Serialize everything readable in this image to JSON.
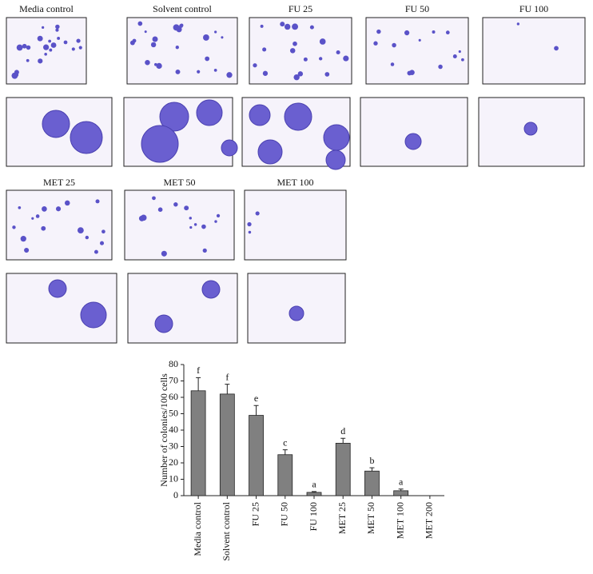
{
  "panel_labels": [
    "Media control",
    "Solvent control",
    "FU 25",
    "FU 50",
    "FU 100",
    "MET 25",
    "MET 50",
    "MET 100"
  ],
  "chart_data": {
    "type": "bar",
    "ylabel": "Number of colonies/100 cells",
    "categories": [
      "Media control",
      "Solvent control",
      "FU 25",
      "FU 50",
      "FU 100",
      "MET 25",
      "MET 50",
      "MET 100",
      "MET 200"
    ],
    "values": [
      64,
      62,
      49,
      25,
      2,
      32,
      15,
      3,
      0
    ],
    "errors": [
      8,
      6,
      6,
      3,
      0.5,
      3,
      2,
      1,
      0
    ],
    "significance": [
      "f",
      "f",
      "e",
      "c",
      "a",
      "d",
      "b",
      "a",
      null
    ],
    "color": "#808080",
    "ylim": [
      0,
      80
    ],
    "yticks": [
      0,
      10,
      20,
      30,
      40,
      50,
      60,
      70,
      80
    ]
  }
}
